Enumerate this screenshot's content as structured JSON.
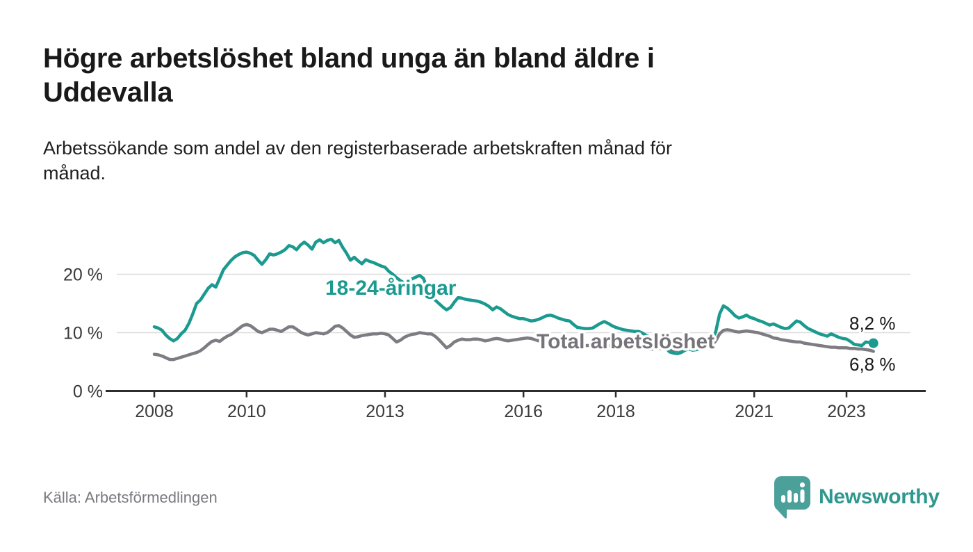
{
  "header": {
    "title_line1": "Högre arbetslöshet bland unga än bland äldre i",
    "title_line2": "Uddevalla",
    "subtitle_line1": "Arbetssökande som andel av den registerbaserade arbetskraften månad för",
    "subtitle_line2": "månad."
  },
  "footer": {
    "source": "Källa: Arbetsförmedlingen",
    "brand": "Newsworthy"
  },
  "colors": {
    "accent_teal": "#1b9a8f",
    "line_gray": "#7e7c82",
    "label_gray": "#76747a",
    "axis": "#2d2d2d",
    "gridline": "#dcdcdc",
    "tick_text": "#3a3a3a",
    "value_text": "#191919",
    "logo_bubble": "#4ca09a",
    "logo_text": "#2e988e"
  },
  "chart_data": {
    "type": "line",
    "title": "Högre arbetslöshet bland unga än bland äldre i Uddevalla",
    "subtitle": "Arbetssökande som andel av den registerbaserade arbetskraften månad för månad.",
    "frequency": "monthly",
    "x_start": {
      "year": 2008,
      "month": 1
    },
    "x_end": {
      "year": 2023,
      "month": 8
    },
    "x_axis": {
      "ticks": [
        2008,
        2010,
        2013,
        2016,
        2018,
        2021,
        2023
      ]
    },
    "y_axis": {
      "ticks": [
        {
          "value": 0,
          "label": "0 %"
        },
        {
          "value": 10,
          "label": "10 %"
        },
        {
          "value": 20,
          "label": "20 %"
        }
      ],
      "gridlines": [
        10,
        20
      ]
    },
    "ylim": [
      0,
      28
    ],
    "legend_position": "inline-labels",
    "grid": true,
    "series": [
      {
        "id": "total",
        "name": "Total arbetslöshet",
        "color": "#7e7c82",
        "end_label": "6,8 %",
        "end_value": 6.8,
        "end_dot": false,
        "values": [
          6.3,
          6.2,
          6.0,
          5.7,
          5.4,
          5.4,
          5.6,
          5.8,
          6.0,
          6.2,
          6.4,
          6.6,
          6.9,
          7.4,
          8.0,
          8.5,
          8.7,
          8.5,
          9.0,
          9.4,
          9.7,
          10.2,
          10.7,
          11.2,
          11.4,
          11.2,
          10.7,
          10.2,
          10.0,
          10.3,
          10.6,
          10.6,
          10.4,
          10.2,
          10.6,
          11.0,
          11.0,
          10.6,
          10.1,
          9.8,
          9.6,
          9.8,
          10.0,
          9.9,
          9.8,
          10.0,
          10.5,
          11.1,
          11.2,
          10.8,
          10.2,
          9.6,
          9.2,
          9.3,
          9.5,
          9.6,
          9.7,
          9.8,
          9.8,
          9.9,
          9.8,
          9.6,
          9.0,
          8.4,
          8.7,
          9.2,
          9.5,
          9.7,
          9.8,
          10.0,
          9.9,
          9.8,
          9.8,
          9.4,
          8.8,
          8.1,
          7.4,
          7.8,
          8.4,
          8.7,
          8.9,
          8.8,
          8.8,
          8.9,
          8.9,
          8.8,
          8.6,
          8.7,
          8.9,
          9.0,
          8.9,
          8.7,
          8.6,
          8.7,
          8.8,
          8.9,
          9.0,
          9.1,
          9.0,
          8.8,
          8.6,
          8.5,
          8.6,
          8.6,
          8.5,
          8.4,
          8.3,
          8.2,
          8.2,
          8.1,
          8.0,
          7.9,
          7.8,
          7.8,
          7.9,
          8.0,
          8.0,
          7.9,
          7.8,
          7.8,
          7.8,
          7.7,
          7.6,
          7.5,
          7.4,
          7.4,
          7.5,
          7.4,
          7.3,
          7.2,
          7.2,
          7.3,
          7.3,
          7.2,
          7.1,
          7.0,
          7.0,
          7.1,
          7.3,
          7.3,
          7.2,
          7.3,
          7.4,
          7.6,
          7.7,
          7.9,
          8.6,
          9.8,
          10.4,
          10.5,
          10.4,
          10.2,
          10.1,
          10.2,
          10.3,
          10.2,
          10.1,
          10.0,
          9.8,
          9.6,
          9.4,
          9.1,
          9.0,
          8.8,
          8.7,
          8.6,
          8.5,
          8.4,
          8.4,
          8.2,
          8.1,
          8.0,
          7.9,
          7.8,
          7.7,
          7.6,
          7.5,
          7.5,
          7.4,
          7.4,
          7.4,
          7.3,
          7.3,
          7.2,
          7.2,
          7.1,
          7.0,
          6.8
        ]
      },
      {
        "id": "youth",
        "name": "18-24-åringar",
        "color": "#1b9a8f",
        "end_label": "8,2 %",
        "end_value": 8.2,
        "end_dot": true,
        "values": [
          11.0,
          10.8,
          10.4,
          9.6,
          9.0,
          8.6,
          9.0,
          9.8,
          10.4,
          11.6,
          13.2,
          15.0,
          15.6,
          16.6,
          17.6,
          18.2,
          17.8,
          19.3,
          20.8,
          21.6,
          22.4,
          23.0,
          23.4,
          23.7,
          23.8,
          23.6,
          23.2,
          22.4,
          21.7,
          22.5,
          23.5,
          23.3,
          23.5,
          23.8,
          24.2,
          24.9,
          24.7,
          24.2,
          25.0,
          25.5,
          25.0,
          24.3,
          25.5,
          25.9,
          25.4,
          25.8,
          26.0,
          25.4,
          25.8,
          24.6,
          23.6,
          22.4,
          22.9,
          22.3,
          21.8,
          22.5,
          22.2,
          22.0,
          21.7,
          21.4,
          21.2,
          20.5,
          20.0,
          19.4,
          18.9,
          18.5,
          18.8,
          19.2,
          19.5,
          19.8,
          19.3,
          17.5,
          16.3,
          15.6,
          15.0,
          14.4,
          13.9,
          14.3,
          15.2,
          16.0,
          15.9,
          15.7,
          15.6,
          15.5,
          15.4,
          15.2,
          14.9,
          14.5,
          13.9,
          14.4,
          14.1,
          13.6,
          13.1,
          12.8,
          12.6,
          12.4,
          12.4,
          12.2,
          12.0,
          12.1,
          12.3,
          12.6,
          12.9,
          13.0,
          12.8,
          12.5,
          12.3,
          12.1,
          12.0,
          11.4,
          10.9,
          10.8,
          10.7,
          10.7,
          10.8,
          11.2,
          11.6,
          11.9,
          11.6,
          11.2,
          10.9,
          10.7,
          10.5,
          10.4,
          10.3,
          10.2,
          10.2,
          9.9,
          9.5,
          9.2,
          9.0,
          8.7,
          8.2,
          7.4,
          6.7,
          6.5,
          6.4,
          6.6,
          7.0,
          7.2,
          7.0,
          7.1,
          7.3,
          7.6,
          8.0,
          8.4,
          10.2,
          13.2,
          14.6,
          14.2,
          13.6,
          12.9,
          12.5,
          12.7,
          13.0,
          12.6,
          12.4,
          12.1,
          11.9,
          11.6,
          11.3,
          11.5,
          11.2,
          10.9,
          10.7,
          10.8,
          11.4,
          12.0,
          11.8,
          11.2,
          10.7,
          10.4,
          10.1,
          9.8,
          9.6,
          9.4,
          9.8,
          9.5,
          9.2,
          9.0,
          8.9,
          8.5,
          8.0,
          7.9,
          7.8,
          8.4,
          8.3,
          8.2
        ]
      }
    ]
  }
}
